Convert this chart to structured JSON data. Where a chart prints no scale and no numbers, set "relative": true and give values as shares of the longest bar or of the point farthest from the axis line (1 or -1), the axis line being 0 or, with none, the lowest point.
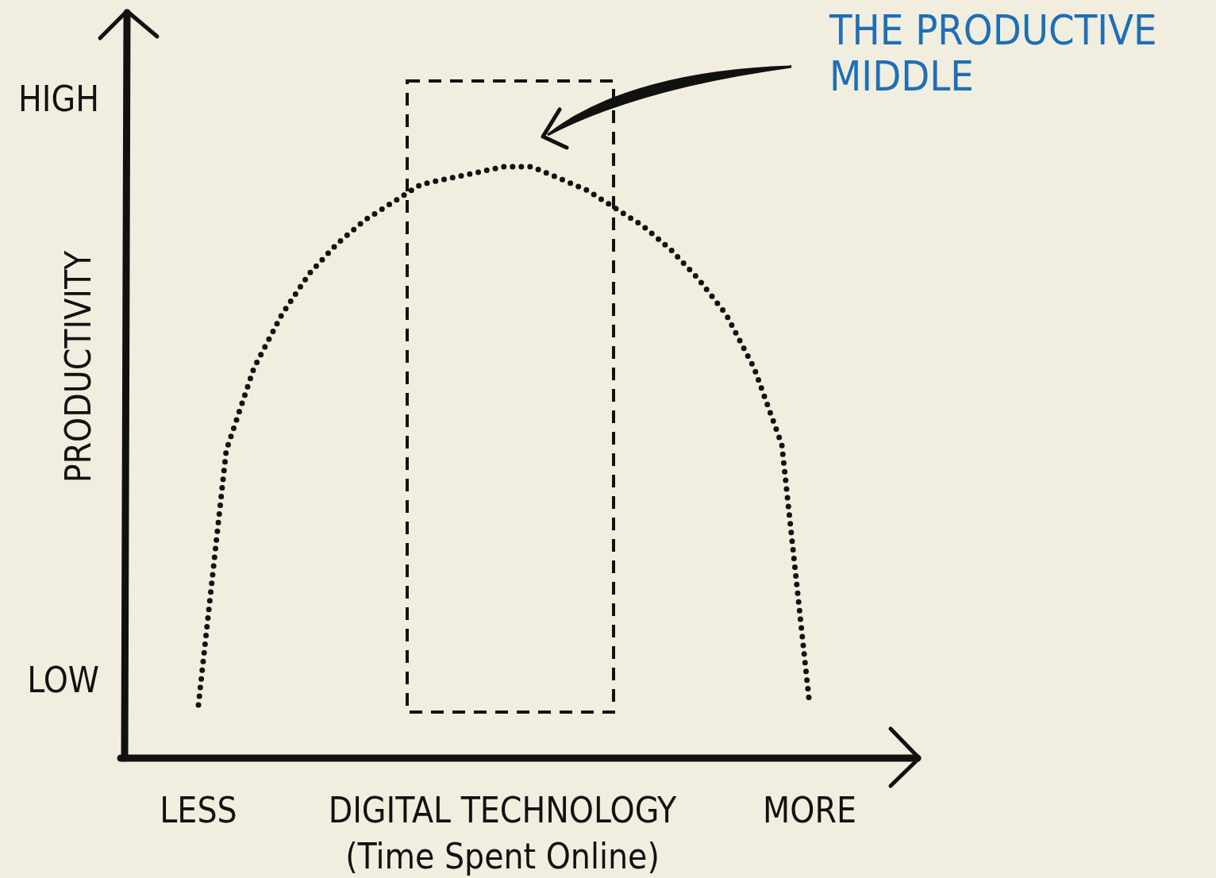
{
  "chart_data": {
    "type": "line",
    "relative": true,
    "xlabel": "DIGITAL TECHNOLOGY (Time Spent Online)",
    "ylabel": "PRODUCTIVITY",
    "categories": [
      "LESS",
      null,
      null,
      null,
      null,
      null,
      null,
      null,
      null,
      null,
      null,
      null,
      null,
      null,
      null,
      null,
      null,
      null,
      null,
      null,
      null,
      null,
      "MORE"
    ],
    "series": [
      {
        "color": "#111111",
        "values": [
          0.09,
          0.52,
          0.66,
          0.75,
          0.82,
          0.87,
          0.91,
          0.94,
          0.97,
          0.98,
          0.99,
          1,
          1,
          0.98,
          0.96,
          0.93,
          0.9,
          0.86,
          0.81,
          0.75,
          0.66,
          0.53,
          0.09
        ]
      }
    ],
    "line_style": "dotted",
    "marker": "none",
    "annotations": [
      "HIGH",
      "LOW",
      "THE PRODUCTIVE MIDDLE"
    ]
  }
}
